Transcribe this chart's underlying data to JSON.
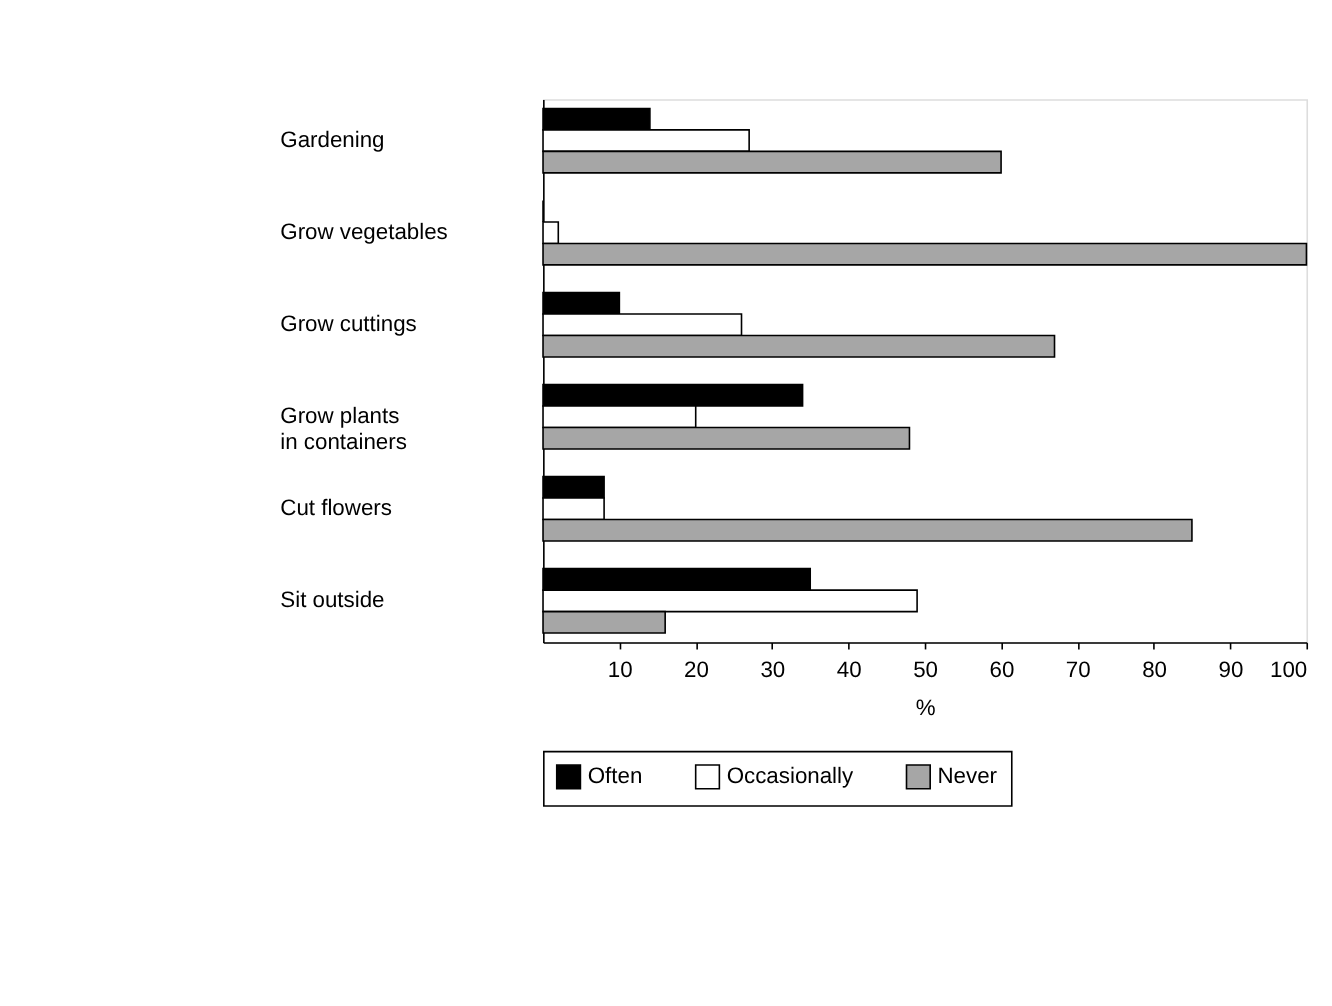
{
  "chart_data": {
    "type": "bar",
    "orientation": "horizontal",
    "xlabel": "%",
    "categories": [
      "Gardening",
      "Grow vegetables",
      "Grow cuttings",
      "Grow plants\nin containers",
      "Cut flowers",
      "Sit outside"
    ],
    "series": [
      {
        "name": "Often",
        "color": "#000000",
        "values": [
          14,
          0,
          10,
          34,
          8,
          35
        ]
      },
      {
        "name": "Occasionally",
        "color": "#ffffff",
        "values": [
          27,
          2,
          26,
          20,
          8,
          49
        ]
      },
      {
        "name": "Never",
        "color": "#a6a6a6",
        "values": [
          60,
          100,
          67,
          48,
          85,
          16
        ]
      }
    ],
    "xlim": [
      0,
      100
    ],
    "xticks": [
      10,
      20,
      30,
      40,
      50,
      60,
      70,
      80,
      90,
      100
    ],
    "grid": false,
    "legend": "bottom"
  }
}
